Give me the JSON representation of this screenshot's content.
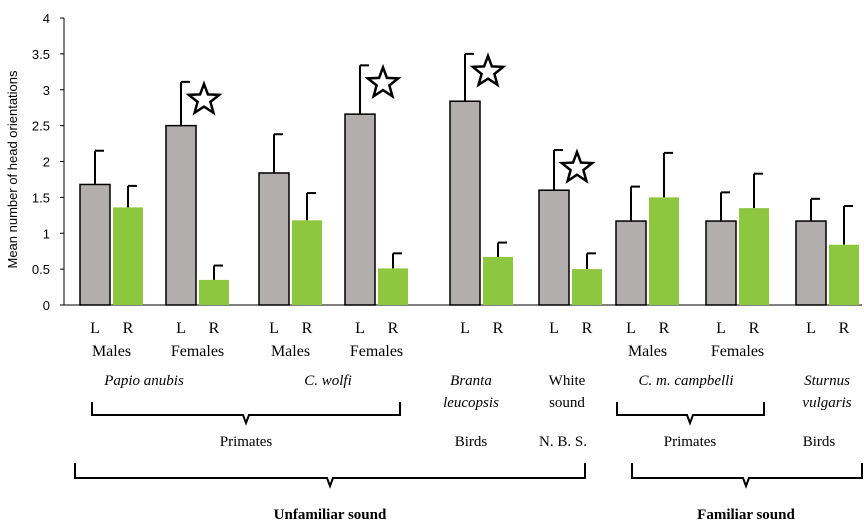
{
  "chart_data": {
    "type": "bar",
    "ylabel": "Mean number of head orientations",
    "ylim": [
      0,
      4
    ],
    "yticks": [
      "0",
      "0.5",
      "1",
      "1.5",
      "2",
      "2.5",
      "3",
      "3.5",
      "4"
    ],
    "series": [
      {
        "name": "L",
        "color": "#b2aeae"
      },
      {
        "name": "R",
        "color": "#8dc63f"
      }
    ],
    "groups": [
      {
        "sex": "Males",
        "L": 1.68,
        "L_err": 0.47,
        "R": 1.36,
        "R_err": 0.3,
        "star": false
      },
      {
        "sex": "Females",
        "L": 2.5,
        "L_err": 0.61,
        "R": 0.35,
        "R_err": 0.2,
        "star": true
      },
      {
        "sex": "Males",
        "L": 1.84,
        "L_err": 0.54,
        "R": 1.18,
        "R_err": 0.38,
        "star": false
      },
      {
        "sex": "Females",
        "L": 2.66,
        "L_err": 0.68,
        "R": 0.51,
        "R_err": 0.21,
        "star": true
      },
      {
        "sex": "",
        "L": 2.84,
        "L_err": 0.66,
        "R": 0.67,
        "R_err": 0.2,
        "star": true
      },
      {
        "sex": "",
        "L": 1.6,
        "L_err": 0.56,
        "R": 0.5,
        "R_err": 0.22,
        "star": true
      },
      {
        "sex": "Males",
        "L": 1.17,
        "L_err": 0.48,
        "R": 1.5,
        "R_err": 0.62,
        "star": false
      },
      {
        "sex": "Females",
        "L": 1.17,
        "L_err": 0.4,
        "R": 1.35,
        "R_err": 0.48,
        "star": false
      },
      {
        "sex": "",
        "L": 1.17,
        "L_err": 0.31,
        "R": 0.84,
        "R_err": 0.54,
        "star": false
      }
    ],
    "species": [
      {
        "line1": "Papio anubis",
        "line2": "",
        "italic": true
      },
      {
        "line1": "C. wolfi",
        "line2": "",
        "italic": true
      },
      {
        "line1": "Branta",
        "line2": "leucopsis",
        "italic": true
      },
      {
        "line1": "White",
        "line2": "sound",
        "italic": false
      },
      {
        "line1": "C. m. campbelli",
        "line2": "",
        "italic": true
      },
      {
        "line1": "Sturnus",
        "line2": "vulgaris",
        "italic": true
      }
    ],
    "taxa": [
      "Primates",
      "Birds",
      "N. B. S.",
      "Primates",
      "Birds"
    ],
    "conditions": [
      "Unfamiliar sound",
      "Familiar sound"
    ]
  }
}
